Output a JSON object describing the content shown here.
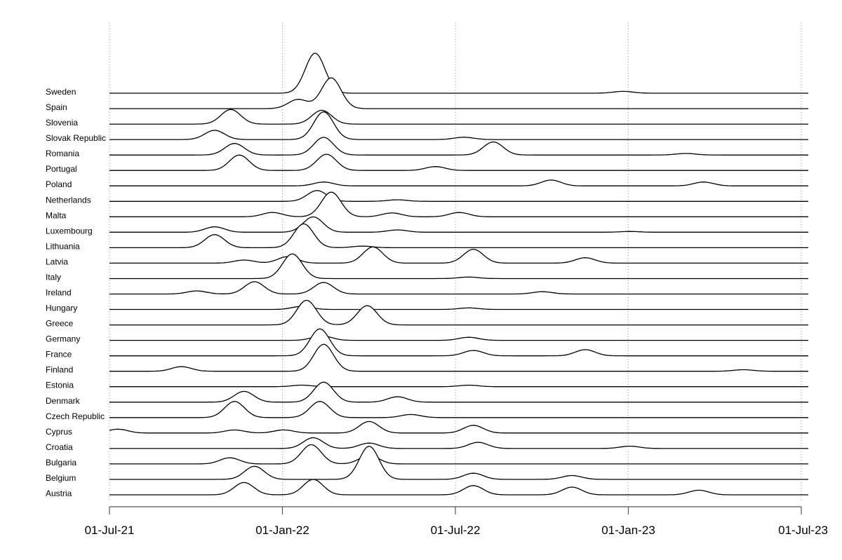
{
  "chart_data": {
    "type": "ridgeline",
    "x_ticks": [
      "01-Jul-21",
      "01-Jan-22",
      "01-Jul-22",
      "01-Jan-23",
      "01-Jul-23"
    ],
    "xlim": [
      "2021-07-01",
      "2023-07-01"
    ],
    "grid": "vertical dotted at x ticks",
    "series": [
      {
        "name": "Sweden",
        "peaks": [
          [
            "2022-02-03",
            2.6
          ],
          [
            "2022-12-25",
            0.12
          ]
        ]
      },
      {
        "name": "Spain",
        "peaks": [
          [
            "2022-01-16",
            0.6
          ],
          [
            "2022-02-20",
            2.0
          ]
        ]
      },
      {
        "name": "Slovenia",
        "peaks": [
          [
            "2021-11-06",
            0.95
          ],
          [
            "2022-02-10",
            0.9
          ]
        ]
      },
      {
        "name": "Slovak Republic",
        "peaks": [
          [
            "2021-10-20",
            0.6
          ],
          [
            "2022-02-12",
            1.8
          ],
          [
            "2022-07-10",
            0.15
          ]
        ]
      },
      {
        "name": "Romania",
        "peaks": [
          [
            "2021-11-10",
            0.75
          ],
          [
            "2022-02-12",
            1.15
          ],
          [
            "2022-08-10",
            0.85
          ],
          [
            "2023-03-01",
            0.1
          ]
        ]
      },
      {
        "name": "Portugal",
        "peaks": [
          [
            "2021-11-15",
            1.0
          ],
          [
            "2022-02-15",
            1.05
          ],
          [
            "2022-06-10",
            0.25
          ]
        ]
      },
      {
        "name": "Poland",
        "peaks": [
          [
            "2022-02-12",
            0.25
          ],
          [
            "2022-10-10",
            0.38
          ],
          [
            "2023-03-20",
            0.25
          ]
        ]
      },
      {
        "name": "Netherlands",
        "peaks": [
          [
            "2022-02-05",
            0.7
          ],
          [
            "2022-05-01",
            0.1
          ]
        ]
      },
      {
        "name": "Malta",
        "peaks": [
          [
            "2021-12-20",
            0.28
          ],
          [
            "2022-02-20",
            1.6
          ],
          [
            "2022-04-25",
            0.25
          ],
          [
            "2022-07-05",
            0.28
          ]
        ]
      },
      {
        "name": "Luxembourg",
        "peaks": [
          [
            "2021-10-20",
            0.35
          ],
          [
            "2022-02-01",
            1.0
          ],
          [
            "2022-05-01",
            0.15
          ],
          [
            "2023-01-01",
            0.05
          ]
        ]
      },
      {
        "name": "Lithuania",
        "peaks": [
          [
            "2021-10-20",
            0.85
          ],
          [
            "2022-01-22",
            1.55
          ],
          [
            "2022-03-25",
            0.1
          ]
        ]
      },
      {
        "name": "Latvia",
        "peaks": [
          [
            "2021-11-20",
            0.2
          ],
          [
            "2022-01-05",
            0.42
          ],
          [
            "2022-04-05",
            1.05
          ],
          [
            "2022-07-20",
            0.9
          ],
          [
            "2022-11-15",
            0.35
          ]
        ]
      },
      {
        "name": "Italy",
        "peaks": [
          [
            "2022-01-10",
            1.6
          ],
          [
            "2022-07-15",
            0.1
          ]
        ]
      },
      {
        "name": "Ireland",
        "peaks": [
          [
            "2021-10-01",
            0.2
          ],
          [
            "2021-12-01",
            0.8
          ],
          [
            "2022-02-12",
            0.75
          ],
          [
            "2022-10-01",
            0.15
          ]
        ]
      },
      {
        "name": "Hungary",
        "peaks": [
          [
            "2022-01-20",
            0.2
          ],
          [
            "2022-07-15",
            0.1
          ]
        ]
      },
      {
        "name": "Greece",
        "peaks": [
          [
            "2022-01-25",
            1.6
          ],
          [
            "2022-03-30",
            1.25
          ]
        ]
      },
      {
        "name": "Germany",
        "peaks": [
          [
            "2022-02-10",
            0.3
          ],
          [
            "2022-07-15",
            0.2
          ]
        ]
      },
      {
        "name": "France",
        "peaks": [
          [
            "2022-02-08",
            1.75
          ],
          [
            "2022-07-20",
            0.35
          ],
          [
            "2022-11-15",
            0.4
          ]
        ]
      },
      {
        "name": "Finland",
        "peaks": [
          [
            "2021-09-15",
            0.3
          ],
          [
            "2022-02-12",
            1.75
          ],
          [
            "2023-05-01",
            0.1
          ]
        ]
      },
      {
        "name": "Estonia",
        "peaks": [
          [
            "2022-01-20",
            0.1
          ],
          [
            "2022-07-15",
            0.1
          ]
        ]
      },
      {
        "name": "Denmark",
        "peaks": [
          [
            "2021-11-20",
            0.7
          ],
          [
            "2022-02-12",
            1.3
          ],
          [
            "2022-05-01",
            0.35
          ]
        ]
      },
      {
        "name": "Czech Republic",
        "peaks": [
          [
            "2021-11-10",
            1.05
          ],
          [
            "2022-02-08",
            1.05
          ],
          [
            "2022-05-15",
            0.2
          ]
        ]
      },
      {
        "name": "Cyprus",
        "peaks": [
          [
            "2021-07-10",
            0.25
          ],
          [
            "2021-11-10",
            0.2
          ],
          [
            "2022-01-01",
            0.2
          ],
          [
            "2022-04-01",
            0.75
          ],
          [
            "2022-07-20",
            0.5
          ]
        ]
      },
      {
        "name": "Croatia",
        "peaks": [
          [
            "2022-02-01",
            0.7
          ],
          [
            "2022-04-01",
            0.35
          ],
          [
            "2022-07-25",
            0.4
          ],
          [
            "2023-01-01",
            0.15
          ]
        ]
      },
      {
        "name": "Bulgaria",
        "peaks": [
          [
            "2021-11-05",
            0.4
          ],
          [
            "2022-01-30",
            1.25
          ],
          [
            "2022-04-01",
            0.55
          ]
        ]
      },
      {
        "name": "Belgium",
        "peaks": [
          [
            "2021-12-01",
            0.85
          ],
          [
            "2022-04-01",
            2.15
          ],
          [
            "2022-07-20",
            0.4
          ],
          [
            "2022-11-01",
            0.25
          ]
        ]
      },
      {
        "name": "Austria",
        "peaks": [
          [
            "2021-11-20",
            0.8
          ],
          [
            "2022-02-01",
            1.0
          ],
          [
            "2022-07-20",
            0.6
          ],
          [
            "2022-11-01",
            0.5
          ],
          [
            "2023-03-15",
            0.3
          ]
        ]
      }
    ]
  }
}
